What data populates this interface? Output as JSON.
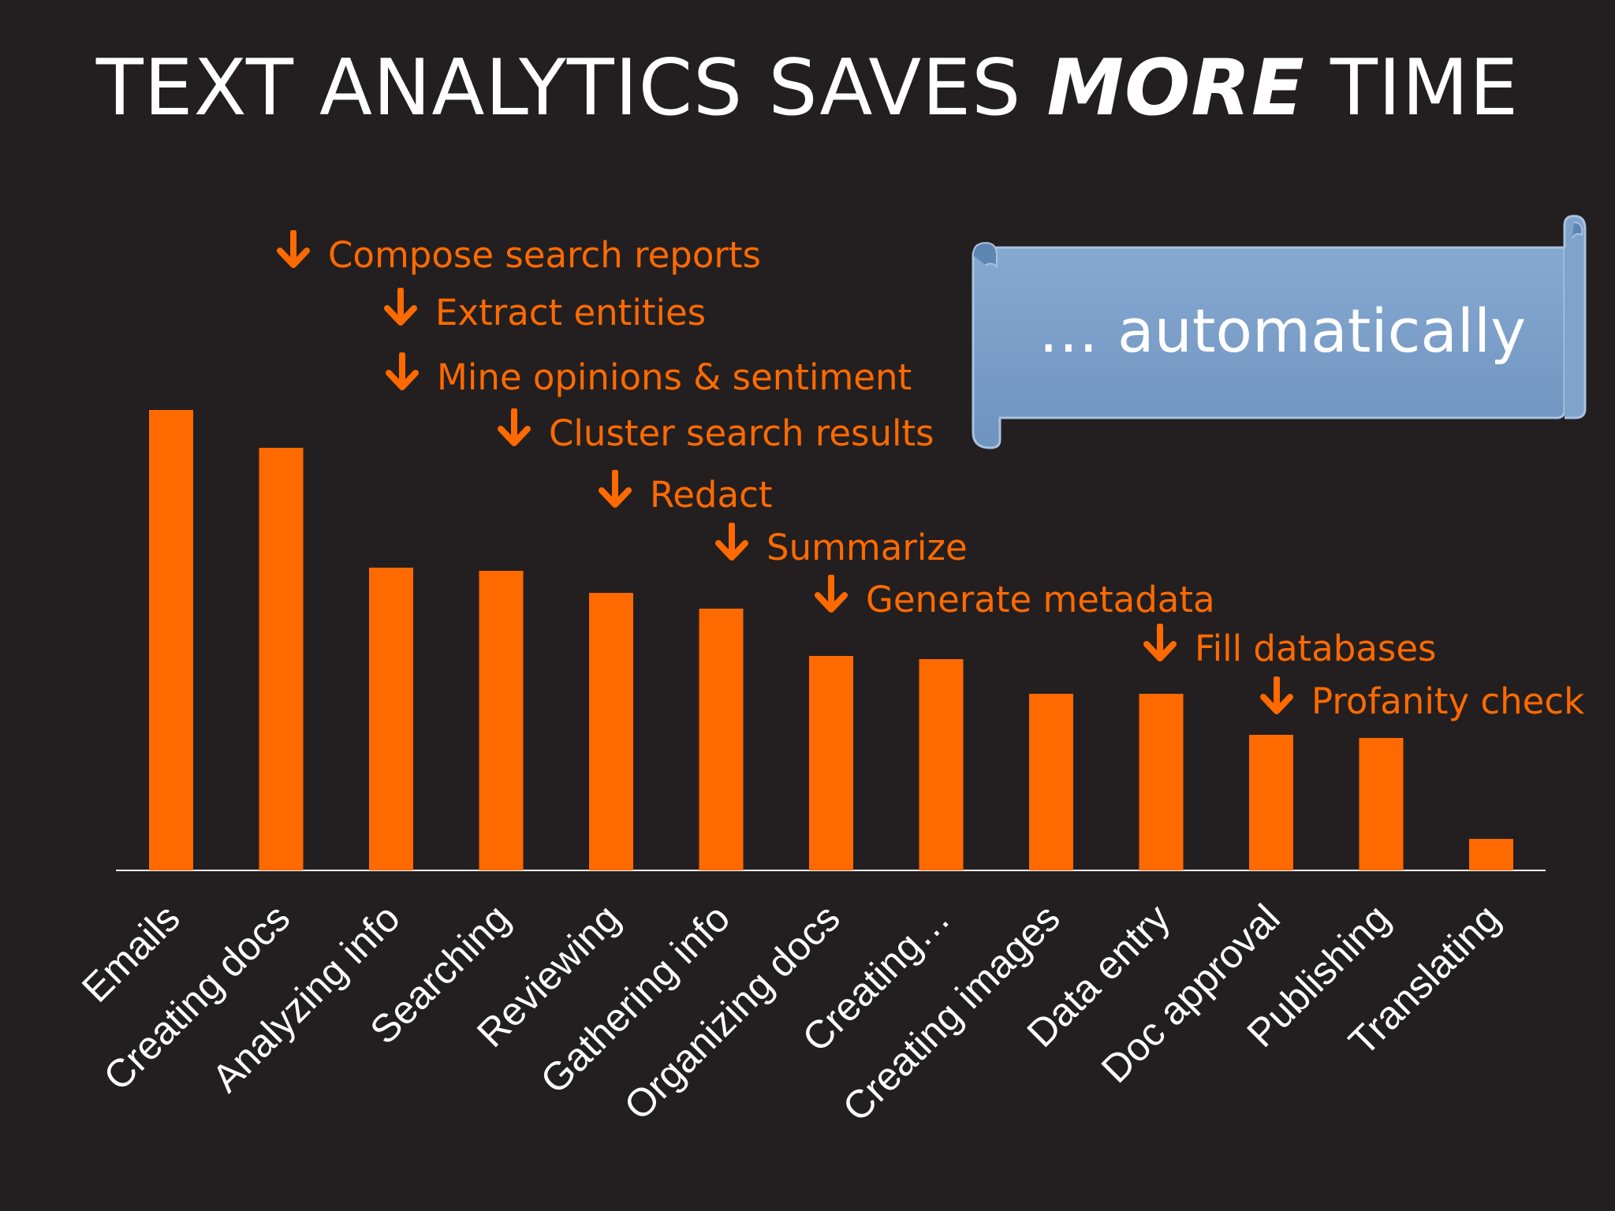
{
  "slide": {
    "title_pre": "TEXT ANALYTICS SAVES",
    "title_emph": "MORE",
    "title_post": "TIME",
    "banner_text": "… automatically",
    "colors": {
      "background": "#231f20",
      "bar": "#ff6a00",
      "annotation": "#ff6a00",
      "banner_fill": "#7a9ec7",
      "text": "#ffffff"
    }
  },
  "annotations": [
    {
      "label": "Compose search reports",
      "icon": "down-arrow-icon"
    },
    {
      "label": "Extract entities",
      "icon": "down-arrow-icon"
    },
    {
      "label": "Mine opinions & sentiment",
      "icon": "down-arrow-icon"
    },
    {
      "label": "Cluster search results",
      "icon": "down-arrow-icon"
    },
    {
      "label": "Redact",
      "icon": "down-arrow-icon"
    },
    {
      "label": "Summarize",
      "icon": "down-arrow-icon"
    },
    {
      "label": "Generate metadata",
      "icon": "down-arrow-icon"
    },
    {
      "label": "Fill databases",
      "icon": "down-arrow-icon"
    },
    {
      "label": "Profanity check",
      "icon": "down-arrow-icon"
    }
  ],
  "chart_data": {
    "type": "bar",
    "title": "TEXT ANALYTICS SAVES MORE TIME",
    "categories": [
      "Emails",
      "Creating docs",
      "Analyzing info",
      "Searching",
      "Reviewing",
      "Gathering info",
      "Organizing docs",
      "Creating…",
      "Creating images",
      "Data entry",
      "Doc approval",
      "Publishing",
      "Translating"
    ],
    "values": [
      14.6,
      13.4,
      9.6,
      9.5,
      8.8,
      8.3,
      6.8,
      6.7,
      5.6,
      5.6,
      4.3,
      4.2,
      1.0
    ],
    "ylim": [
      0,
      16
    ],
    "grid": false,
    "legend": "none",
    "xlabel": "",
    "ylabel": ""
  }
}
